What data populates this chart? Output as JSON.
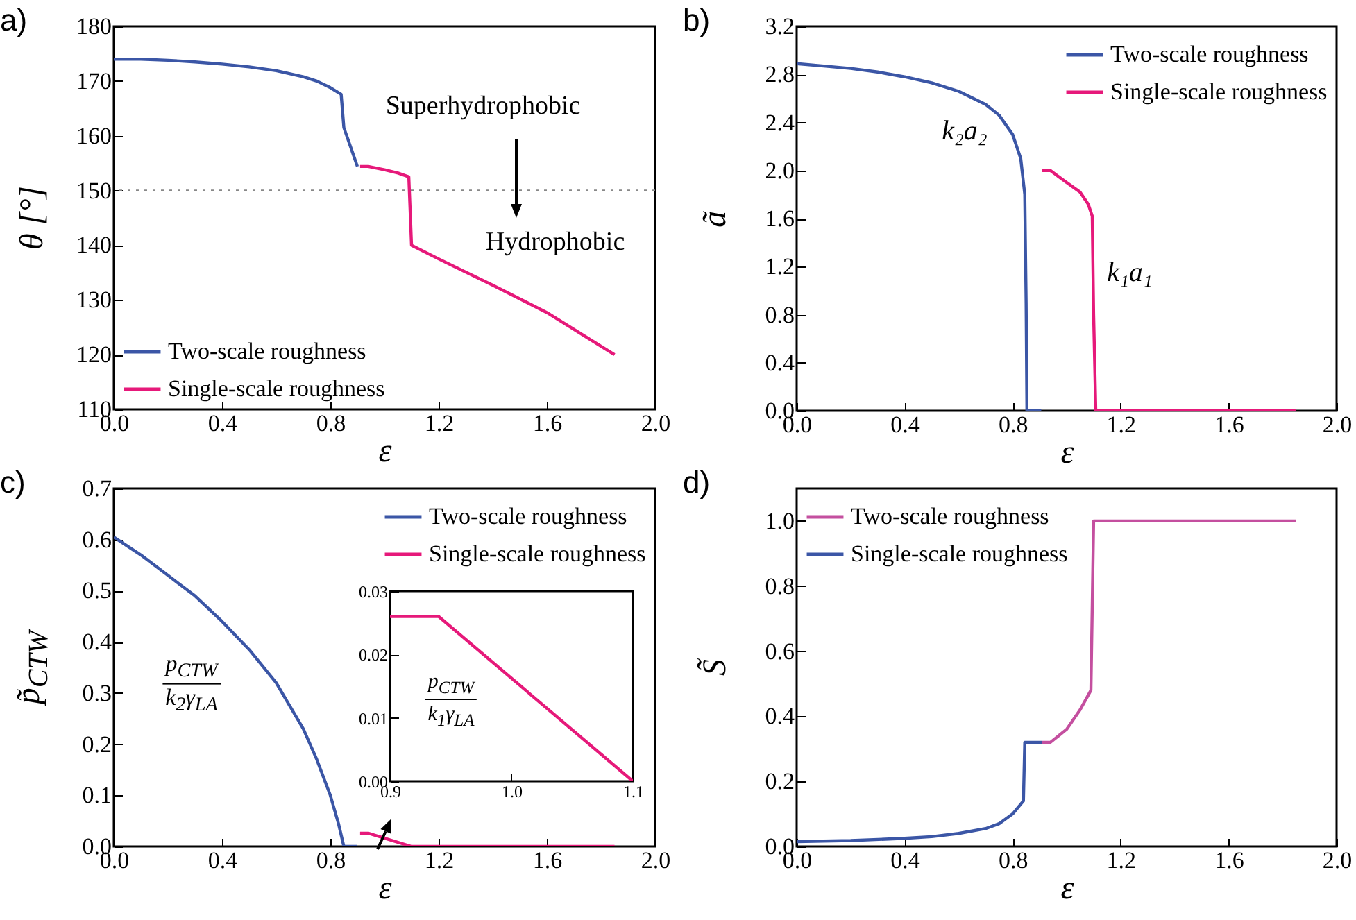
{
  "chart_data": [
    {
      "type": "line",
      "title": "a)",
      "xlabel": "ε",
      "ylabel": "θ [°]",
      "xlim": [
        0,
        2
      ],
      "ylim": [
        110,
        180
      ],
      "xticks": [
        {
          "value": 0,
          "label": "0.0"
        },
        0.4,
        0.8,
        1.2,
        1.6,
        {
          "value": 2,
          "label": "2.0"
        }
      ],
      "yticks": [
        110,
        120,
        130,
        140,
        150,
        160,
        170,
        180
      ],
      "legend": "bottom left",
      "ref_lines": [
        {
          "axis": "y",
          "value": 150,
          "color": "#888888",
          "line_style": "dotted"
        }
      ],
      "annotations": [
        "Superhydrophobic",
        "Hydrophobic"
      ],
      "series": [
        {
          "name": "Two-scale roughness",
          "color": "#3b56a6",
          "x": [
            0,
            0.1,
            0.2,
            0.3,
            0.4,
            0.5,
            0.6,
            0.7,
            0.75,
            0.8,
            0.84,
            0.85,
            0.9
          ],
          "values": [
            174,
            174,
            173.8,
            173.5,
            173.1,
            172.6,
            171.9,
            170.8,
            170,
            168.8,
            167.6,
            161.5,
            154.4
          ]
        },
        {
          "name": "Single-scale roughness",
          "color": "#e6197a",
          "x": [
            0.91,
            0.94,
            1.0,
            1.05,
            1.09,
            1.1,
            1.2,
            1.4,
            1.6,
            1.85
          ],
          "values": [
            154.4,
            154.4,
            153.8,
            153.2,
            152.5,
            140,
            137.5,
            132.7,
            127.7,
            120
          ]
        }
      ]
    },
    {
      "type": "line",
      "title": "b)",
      "xlabel": "ε",
      "ylabel": "ã",
      "xlim": [
        0,
        2
      ],
      "ylim": [
        0,
        3.2
      ],
      "xticks": [
        {
          "value": 0,
          "label": "0.0"
        },
        0.4,
        0.8,
        1.2,
        1.6,
        {
          "value": 2,
          "label": "2.0"
        }
      ],
      "yticks": [
        {
          "value": 0,
          "label": "0.0"
        },
        0.4,
        0.8,
        1.2,
        1.6,
        {
          "value": 2,
          "label": "2.0"
        },
        2.4,
        2.8,
        3.2
      ],
      "legend": "top right",
      "annotations": [
        "k₂a₂",
        "k₁a₁"
      ],
      "series": [
        {
          "name": "Two-scale roughness",
          "color": "#3b56a6",
          "x": [
            0,
            0.1,
            0.2,
            0.3,
            0.4,
            0.5,
            0.6,
            0.7,
            0.75,
            0.8,
            0.83,
            0.845,
            0.85,
            0.853,
            0.906
          ],
          "values": [
            2.89,
            2.87,
            2.85,
            2.82,
            2.78,
            2.73,
            2.66,
            2.55,
            2.46,
            2.3,
            2.1,
            1.8,
            0.9,
            0,
            0
          ]
        },
        {
          "name": "Single-scale roughness",
          "color": "#e6197a",
          "x": [
            0.91,
            0.94,
            1.0,
            1.05,
            1.08,
            1.095,
            1.1,
            1.108,
            1.85
          ],
          "values": [
            2.0,
            2.0,
            1.9,
            1.82,
            1.72,
            1.62,
            0.8,
            0,
            0
          ]
        }
      ]
    },
    {
      "type": "line",
      "title": "c)",
      "xlabel": "ε",
      "ylabel": "p̃$_{CTW}$",
      "xlim": [
        0,
        2
      ],
      "ylim": [
        0,
        0.7
      ],
      "xticks": [
        {
          "value": 0,
          "label": "0.0"
        },
        0.4,
        0.8,
        1.2,
        1.6,
        {
          "value": 2,
          "label": "2.0"
        }
      ],
      "yticks": [
        {
          "value": 0,
          "label": "0.0"
        },
        0.1,
        0.2,
        0.3,
        0.4,
        0.5,
        0.6,
        0.7
      ],
      "legend": "top right",
      "annotations": [
        "p$_{CTW}$",
        "k$_{2}$γ$_{LA}$"
      ],
      "series": [
        {
          "name": "Two-scale roughness",
          "color": "#3b56a6",
          "x": [
            0,
            0.1,
            0.2,
            0.3,
            0.4,
            0.5,
            0.6,
            0.7,
            0.75,
            0.8,
            0.83,
            0.85,
            0.9
          ],
          "values": [
            0.605,
            0.57,
            0.53,
            0.49,
            0.44,
            0.385,
            0.32,
            0.23,
            0.17,
            0.1,
            0.045,
            0,
            0
          ]
        },
        {
          "name": "Single-scale roughness",
          "color": "#e6197a",
          "x": [
            0.91,
            0.94,
            1.1,
            1.85
          ],
          "values": [
            0.026,
            0.026,
            0,
            0
          ]
        }
      ]
    },
    {
      "type": "line",
      "xlim": [
        0.9,
        1.1
      ],
      "ylim": [
        0,
        0.03
      ],
      "xticks": [
        0.9,
        {
          "value": 1,
          "label": "1.0"
        },
        1.1
      ],
      "yticks": [
        {
          "value": 0,
          "label": "0.00"
        },
        0.01,
        0.02,
        0.03
      ],
      "annotations": [
        "p$_{CTW}$",
        "k$_{1}$γ$_{LA}$"
      ],
      "series": [
        {
          "color": "#e6197a",
          "x": [
            0.9,
            0.94,
            1.1
          ],
          "values": [
            0.026,
            0.026,
            0
          ]
        }
      ]
    },
    {
      "type": "line",
      "title": "d)",
      "xlabel": "ε",
      "ylabel": "S̃",
      "xlim": [
        0,
        2
      ],
      "ylim": [
        0,
        1.1
      ],
      "xticks": [
        {
          "value": 0,
          "label": "0.0"
        },
        0.4,
        0.8,
        1.2,
        1.6,
        {
          "value": 2,
          "label": "2.0"
        }
      ],
      "yticks": [
        {
          "value": 0,
          "label": "0.0"
        },
        0.2,
        0.4,
        0.6,
        0.8,
        {
          "value": 1,
          "label": "1.0"
        }
      ],
      "legend": "top left",
      "series": [
        {
          "name": "Two-scale roughness",
          "color": "#c44f9f",
          "x": [
            0.91,
            0.94,
            1.0,
            1.05,
            1.09,
            1.1,
            1.85
          ],
          "values": [
            0.32,
            0.32,
            0.36,
            0.42,
            0.48,
            1.0,
            1.0
          ]
        },
        {
          "name": "Single-scale roughness",
          "color": "#3b56a6",
          "x": [
            0,
            0.2,
            0.4,
            0.5,
            0.6,
            0.7,
            0.75,
            0.8,
            0.84,
            0.845,
            0.91
          ],
          "values": [
            0.015,
            0.018,
            0.025,
            0.03,
            0.04,
            0.055,
            0.07,
            0.1,
            0.14,
            0.32,
            0.32
          ]
        }
      ]
    }
  ]
}
